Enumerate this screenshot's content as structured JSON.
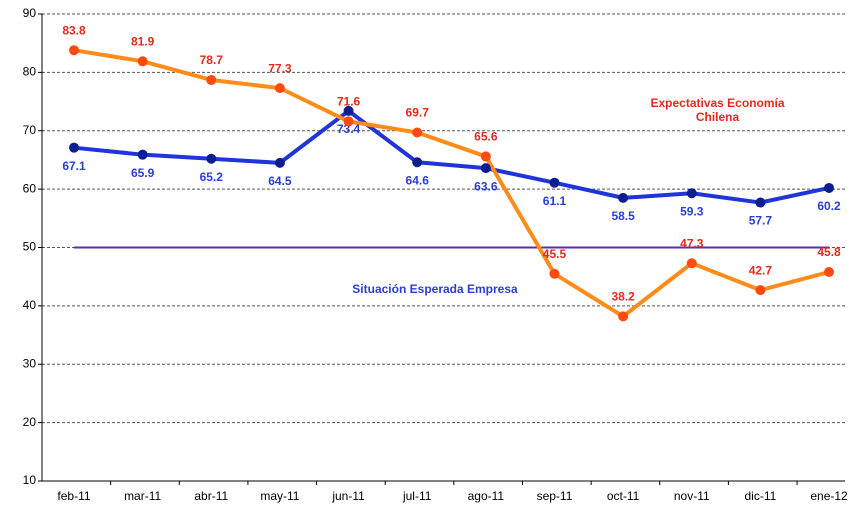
{
  "chart_data": {
    "type": "line",
    "categories": [
      "feb-11",
      "mar-11",
      "abr-11",
      "may-11",
      "jun-11",
      "jul-11",
      "ago-11",
      "sep-11",
      "oct-11",
      "nov-11",
      "dic-11",
      "ene-12"
    ],
    "series": [
      {
        "name": "Situación Esperada Empresa",
        "color": "#1f35d8",
        "marker_color": "#0d1f8f",
        "label_color": "#2a3ed6",
        "label_position": "below",
        "values": [
          67.1,
          65.9,
          65.2,
          64.5,
          73.4,
          64.6,
          63.6,
          61.1,
          58.5,
          59.3,
          57.7,
          60.2
        ]
      },
      {
        "name": "Expectativas Economía Chilena",
        "color": "#ff8c1a",
        "marker_color": "#ff4a10",
        "label_color": "#e42a1c",
        "label_position": "above",
        "values": [
          83.8,
          81.9,
          78.7,
          77.3,
          71.6,
          69.7,
          65.6,
          45.5,
          38.2,
          47.3,
          42.7,
          45.8
        ]
      }
    ],
    "reference_line": {
      "value": 50,
      "color": "#5a2fb0"
    },
    "ylim": [
      10,
      90
    ],
    "yticks": [
      10,
      20,
      30,
      40,
      50,
      60,
      70,
      80,
      90
    ],
    "grid": true
  }
}
